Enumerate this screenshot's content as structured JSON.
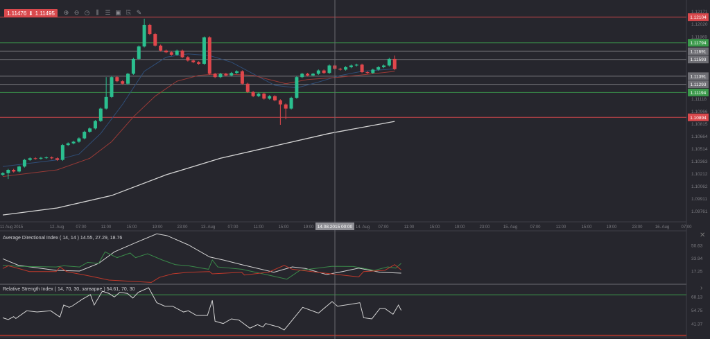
{
  "quote": {
    "bid": "1.11476",
    "ask": "1.11495",
    "direction_icon": "arrow-down-icon",
    "color": "#d9494d"
  },
  "toolbar": [
    "zoom-in-icon",
    "zoom-out-icon",
    "timeframe-icon",
    "indicators-icon",
    "settings-icon",
    "screenshot-icon",
    "attach-icon",
    "draw-icon"
  ],
  "crosshair_label": "14.08.2015 00:00",
  "colors": {
    "up": "#2bbf8f",
    "down": "#e0474c",
    "ma_fast": "#2f4e78",
    "ma_slow": "#9a3a36",
    "ma_long": "#d6d6d6",
    "level_red": "#d9494d",
    "level_green": "#3c9a4c",
    "level_gray": "#8a8a90"
  },
  "chart_data": [
    {
      "type": "candlestick",
      "instrument_quote": "1.11476 / 1.11495",
      "y_ticks": [
        "1.12171",
        "1.12020",
        "1.11869",
        "1.11118",
        "1.10966",
        "1.10815",
        "1.10664",
        "1.10514",
        "1.10363",
        "1.10212",
        "1.10062",
        "1.09911",
        "1.09761"
      ],
      "x_ticks": [
        "11 Aug 2015",
        "12. Aug",
        "07:00",
        "11:00",
        "15:00",
        "19:00",
        "23:00",
        "13. Aug",
        "07:00",
        "11:00",
        "15:00",
        "19:00",
        "14. Aug",
        "07:00",
        "11:00",
        "15:00",
        "19:00",
        "23:00",
        "15. Aug",
        "07:00",
        "11:00",
        "15:00",
        "19:00",
        "23:00",
        "16. Aug",
        "07:00"
      ],
      "ylim": [
        1.097,
        1.1222
      ],
      "close": [
        1.1022,
        1.1026,
        1.1024,
        1.103,
        1.1038,
        1.104,
        1.10395,
        1.10405,
        1.1041,
        1.104,
        1.1038,
        1.1056,
        1.1058,
        1.106,
        1.1064,
        1.1072,
        1.1076,
        1.1085,
        1.11,
        1.1114,
        1.1138,
        1.1133,
        1.113,
        1.1142,
        1.116,
        1.1175,
        1.1201,
        1.119,
        1.1176,
        1.117,
        1.1168,
        1.1165,
        1.117,
        1.1162,
        1.1158,
        1.1156,
        1.1154,
        1.1186,
        1.1142,
        1.1138,
        1.1142,
        1.114,
        1.1143,
        1.1145,
        1.113,
        1.112,
        1.1115,
        1.1118,
        1.1112,
        1.1115,
        1.111,
        1.1105,
        1.11,
        1.1113,
        1.1138,
        1.1142,
        1.114,
        1.1142,
        1.1146,
        1.1143,
        1.1152,
        1.1148,
        1.1147,
        1.115,
        1.1152,
        1.1153,
        1.1144,
        1.1143,
        1.1147,
        1.115,
        1.1152,
        1.116,
        1.11476
      ],
      "first_open": 1.102,
      "wick_extremes": {
        "high": {
          "26": 1.12085,
          "37": 1.1187,
          "19": 1.1138,
          "72": 1.1164
        },
        "low": {
          "1": 1.1015,
          "51": 1.10804,
          "52": 1.1087
        }
      },
      "moving_averages": [
        {
          "role": "fast",
          "points": [
            [
              0,
              1.103
            ],
            [
              10,
              1.1038
            ],
            [
              14,
              1.1045
            ],
            [
              18,
              1.107
            ],
            [
              22,
              1.1105
            ],
            [
              26,
              1.1145
            ],
            [
              30,
              1.1162
            ],
            [
              34,
              1.1166
            ],
            [
              38,
              1.1164
            ],
            [
              42,
              1.1156
            ],
            [
              46,
              1.1142
            ],
            [
              50,
              1.1128
            ],
            [
              54,
              1.1125
            ],
            [
              58,
              1.1132
            ],
            [
              62,
              1.114
            ],
            [
              66,
              1.1145
            ],
            [
              70,
              1.1147
            ],
            [
              72,
              1.1148
            ]
          ]
        },
        {
          "role": "slow",
          "points": [
            [
              0,
              1.1018
            ],
            [
              10,
              1.1026
            ],
            [
              16,
              1.104
            ],
            [
              20,
              1.106
            ],
            [
              24,
              1.109
            ],
            [
              28,
              1.1115
            ],
            [
              32,
              1.1133
            ],
            [
              36,
              1.114
            ],
            [
              40,
              1.1142
            ],
            [
              46,
              1.114
            ],
            [
              52,
              1.113
            ],
            [
              56,
              1.1135
            ],
            [
              62,
              1.1138
            ],
            [
              68,
              1.1142
            ],
            [
              72,
              1.1145
            ]
          ]
        },
        {
          "role": "long",
          "points": [
            [
              0,
              1.09715
            ],
            [
              10,
              1.098
            ],
            [
              20,
              1.0995
            ],
            [
              30,
              1.102
            ],
            [
              40,
              1.104
            ],
            [
              50,
              1.1055
            ],
            [
              60,
              1.107
            ],
            [
              72,
              1.10845
            ]
          ]
        }
      ],
      "levels": [
        {
          "price": "1.12104",
          "kind": "red"
        },
        {
          "price": "1.11794",
          "kind": "green"
        },
        {
          "price": "1.11691",
          "kind": "gray"
        },
        {
          "price": "1.11593",
          "kind": "gray"
        },
        {
          "price": "1.11391",
          "kind": "gray"
        },
        {
          "price": "1.11293",
          "kind": "gray"
        },
        {
          "price": "1.11194",
          "kind": "green"
        },
        {
          "price": "1.10894",
          "kind": "red"
        }
      ]
    },
    {
      "type": "line",
      "title": "Average Directional Index ( 14, 14 ) 14.55, 27.29, 18.76",
      "y_ticks": [
        "50.63",
        "33.94",
        "17.25"
      ],
      "series": [
        {
          "role": "adx",
          "color": "#d6d6d6",
          "points": [
            [
              0,
              33.2
            ],
            [
              2.9,
              24.7
            ],
            [
              9.8,
              18.2
            ],
            [
              14.1,
              17.25
            ],
            [
              17.6,
              27.2
            ],
            [
              20.5,
              42.2
            ],
            [
              24.4,
              54.2
            ],
            [
              28.3,
              65.7
            ],
            [
              30.2,
              63.3
            ],
            [
              34.1,
              51.3
            ],
            [
              38,
              35.6
            ],
            [
              40.5,
              31.7
            ],
            [
              43.9,
              25.6
            ],
            [
              49.8,
              15.7
            ],
            [
              53.2,
              22.7
            ],
            [
              55.6,
              20.6
            ],
            [
              59.5,
              12.7
            ],
            [
              62.4,
              16.6
            ],
            [
              65.4,
              21.1
            ],
            [
              69.3,
              15.7
            ],
            [
              73.2,
              14.55
            ]
          ]
        },
        {
          "role": "plus-di",
          "color": "#3a8a4a",
          "points": [
            [
              0,
              24.7
            ],
            [
              2.9,
              23.5
            ],
            [
              9.8,
              22.6
            ],
            [
              11.2,
              24.1
            ],
            [
              14.1,
              22.6
            ],
            [
              15.6,
              28.6
            ],
            [
              17.6,
              27.2
            ],
            [
              18.8,
              42.2
            ],
            [
              21,
              34.7
            ],
            [
              23.4,
              40.7
            ],
            [
              24.4,
              34.7
            ],
            [
              26.6,
              39.8
            ],
            [
              29.3,
              31.7
            ],
            [
              31.7,
              25.6
            ],
            [
              34.1,
              24.1
            ],
            [
              37.8,
              19.6
            ],
            [
              38.5,
              31.7
            ],
            [
              39.5,
              22.6
            ],
            [
              43.9,
              19.6
            ],
            [
              48.8,
              12.1
            ],
            [
              52.2,
              6.7
            ],
            [
              54.6,
              18.2
            ],
            [
              60.5,
              23.5
            ],
            [
              64.4,
              23.2
            ],
            [
              68.3,
              18.2
            ],
            [
              70.7,
              22.6
            ],
            [
              72.2,
              21.1
            ],
            [
              73.2,
              27.29
            ]
          ]
        },
        {
          "role": "minus-di",
          "color": "#c0392b",
          "points": [
            [
              0,
              20.6
            ],
            [
              1,
              24.1
            ],
            [
              2.9,
              20.6
            ],
            [
              4.9,
              16.6
            ],
            [
              9.8,
              16.6
            ],
            [
              10.5,
              22.6
            ],
            [
              11.7,
              16.6
            ],
            [
              16.1,
              10.6
            ],
            [
              19.5,
              5.5
            ],
            [
              27.3,
              2.5
            ],
            [
              28.8,
              9.1
            ],
            [
              31.2,
              13.6
            ],
            [
              34.1,
              15.7
            ],
            [
              38,
              16.6
            ],
            [
              38.5,
              13.6
            ],
            [
              43.9,
              15.7
            ],
            [
              44.4,
              12.1
            ],
            [
              48.8,
              15.7
            ],
            [
              51.7,
              24.7
            ],
            [
              53.2,
              19.6
            ],
            [
              58.5,
              15.1
            ],
            [
              65.4,
              9.7
            ],
            [
              66.3,
              16.6
            ],
            [
              70.2,
              18.2
            ],
            [
              72,
              25.6
            ],
            [
              73.2,
              18.76
            ]
          ]
        }
      ]
    },
    {
      "type": "line",
      "title": "Relative Strength Index ( 14, 70, 30, затварие ) 54.61, 70, 30",
      "y_ticks": [
        "68.13",
        "54.75",
        "41.37"
      ],
      "overbought": 70,
      "oversold": 30,
      "series": [
        {
          "role": "rsi",
          "color": "#d6d6d6",
          "points": [
            [
              0,
              47.3
            ],
            [
              1,
              45.5
            ],
            [
              2,
              48.4
            ],
            [
              2.4,
              46.6
            ],
            [
              4.4,
              54.2
            ],
            [
              6.3,
              53.0
            ],
            [
              8.8,
              54.2
            ],
            [
              10.5,
              48.0
            ],
            [
              11.2,
              59.9
            ],
            [
              12.2,
              57.6
            ],
            [
              12.7,
              58.7
            ],
            [
              14.6,
              65.6
            ],
            [
              16.1,
              70.2
            ],
            [
              16.8,
              59.9
            ],
            [
              18.3,
              73.6
            ],
            [
              19.5,
              71.4
            ],
            [
              20.5,
              67.9
            ],
            [
              21.5,
              72.5
            ],
            [
              22.9,
              71.4
            ],
            [
              23.9,
              66.8
            ],
            [
              24.9,
              72.5
            ],
            [
              26.8,
              77.0
            ],
            [
              28.3,
              62.2
            ],
            [
              29.8,
              58.7
            ],
            [
              31.2,
              58.7
            ],
            [
              33.2,
              53.0
            ],
            [
              34.1,
              54.2
            ],
            [
              35.6,
              49.6
            ],
            [
              37.6,
              49.6
            ],
            [
              38.5,
              64.5
            ],
            [
              39,
              43.9
            ],
            [
              40.5,
              41.6
            ],
            [
              42,
              46.2
            ],
            [
              43.4,
              45.0
            ],
            [
              45.4,
              37.0
            ],
            [
              46.8,
              40.5
            ],
            [
              47.8,
              38.1
            ],
            [
              48.3,
              41.6
            ],
            [
              50.7,
              38.1
            ],
            [
              51.7,
              35.2
            ],
            [
              53.2,
              45.0
            ],
            [
              55.1,
              57.6
            ],
            [
              58,
              51.9
            ],
            [
              60.5,
              63.3
            ],
            [
              61.5,
              58.7
            ],
            [
              64.4,
              61.1
            ],
            [
              65.6,
              62.2
            ],
            [
              66.3,
              47.3
            ],
            [
              67.8,
              46.2
            ],
            [
              69.3,
              56.5
            ],
            [
              70.2,
              56.5
            ],
            [
              71.7,
              50.8
            ],
            [
              72.7,
              59.9
            ],
            [
              73.2,
              54.61
            ]
          ]
        }
      ]
    }
  ]
}
